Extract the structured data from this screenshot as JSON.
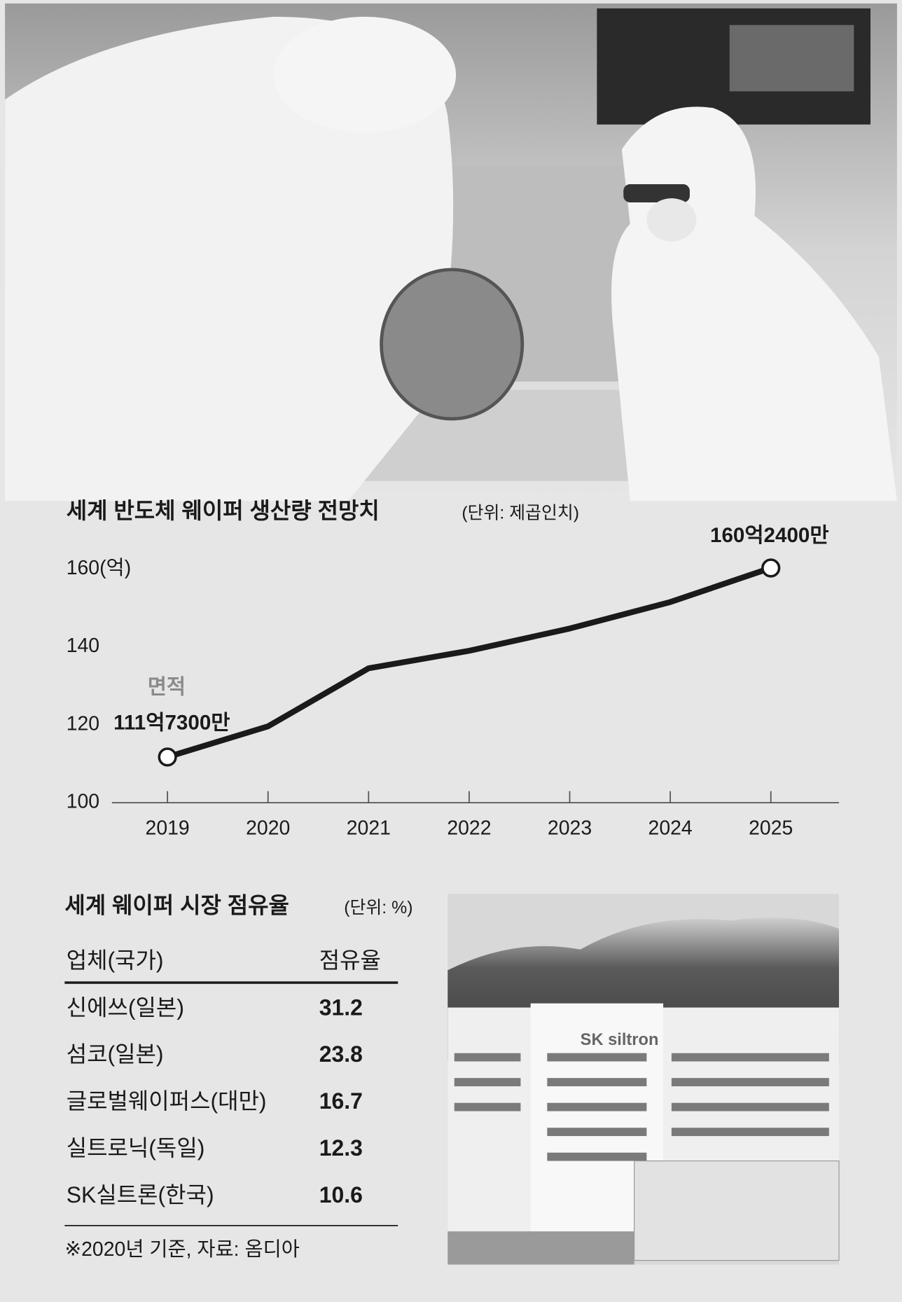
{
  "chart_data": {
    "type": "line",
    "title": "세계 반도체 웨이퍼  생산량 전망치",
    "subtitle": "(단위: 제곱인치)",
    "annotation": "면적",
    "categories": [
      "2019",
      "2020",
      "2021",
      "2022",
      "2023",
      "2024",
      "2025"
    ],
    "values": [
      111.73,
      119.6,
      134.5,
      139,
      144.7,
      151.5,
      160.24
    ],
    "value_labels": [
      "111억7300만",
      null,
      null,
      null,
      null,
      null,
      "160억2400만"
    ],
    "color": "#1a1a1a",
    "ylim": [
      100,
      160
    ],
    "yticks": [
      100,
      120,
      140,
      {
        "value": 160,
        "label": "160(억)"
      }
    ],
    "grid": false
  },
  "table": {
    "title": "세계 웨이퍼 시장 점유율",
    "unit": "(단위: %)",
    "header": [
      "업체(국가)",
      "점유율"
    ],
    "rows": [
      [
        "신에쓰(일본)",
        31.2
      ],
      [
        "섬코(일본)",
        23.8
      ],
      [
        "글로벌웨이퍼스(대만)",
        16.7
      ],
      [
        "실트로닉(독일)",
        12.3
      ],
      [
        "SK실트론(한국)",
        10.6
      ]
    ],
    "footnote": "※2020년 기준, 자료: 옴디아"
  }
}
